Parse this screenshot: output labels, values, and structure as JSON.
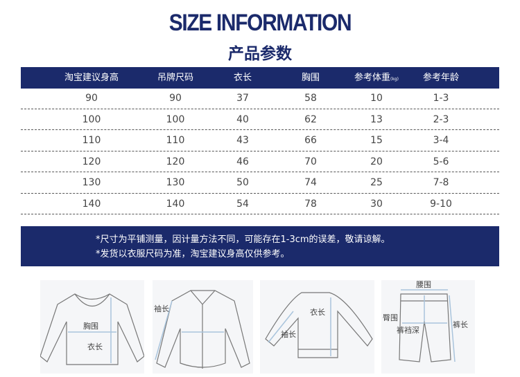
{
  "title": "SIZE INFORMATION",
  "subtitle": "产品参数",
  "table": {
    "headers": [
      "淘宝建议身高",
      "吊牌尺码",
      "衣长",
      "胸围",
      "参考体重",
      "参考年龄"
    ],
    "weight_unit": "(kg)",
    "rows": [
      [
        "90",
        "90",
        "37",
        "58",
        "10",
        "1-3"
      ],
      [
        "100",
        "100",
        "40",
        "62",
        "13",
        "2-3"
      ],
      [
        "110",
        "110",
        "43",
        "66",
        "15",
        "3-4"
      ],
      [
        "120",
        "120",
        "46",
        "70",
        "20",
        "5-6"
      ],
      [
        "130",
        "130",
        "50",
        "74",
        "25",
        "7-8"
      ],
      [
        "140",
        "140",
        "54",
        "78",
        "30",
        "9-10"
      ]
    ]
  },
  "notes": [
    "*尺寸为平铺测量，因计量方法不同，可能存在1-3cm的误差，敬请谅解。",
    "*发货以衣服尺码为准，淘宝建议身高仅供参考。"
  ],
  "diagrams": {
    "tshirt": {
      "chest": "胸围",
      "length": "衣长"
    },
    "shirt": {
      "sleeve": "袖长"
    },
    "sweater": {
      "length": "衣长",
      "sleeve": "袖长"
    },
    "pants": {
      "waist": "腰围",
      "hip": "臀围",
      "rise": "裤裆深",
      "length": "裤长"
    }
  },
  "colors": {
    "navy": "#1b2a6b",
    "measure": "#a9c4dc"
  }
}
